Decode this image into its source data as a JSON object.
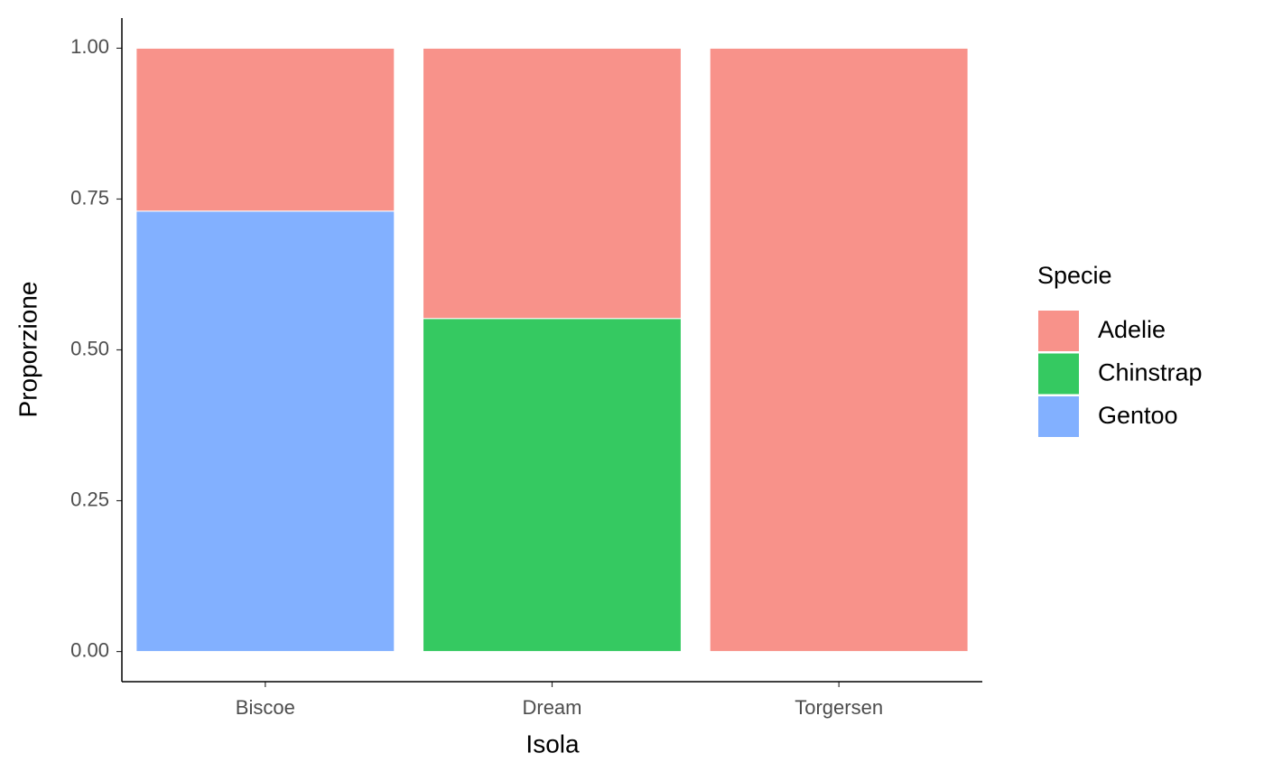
{
  "chart_data": {
    "type": "stacked_bar",
    "x_label": "Isola",
    "y_label": "Proporzione",
    "legend_title": "Specie",
    "categories": [
      "Biscoe",
      "Dream",
      "Torgersen"
    ],
    "series": [
      {
        "name": "Adelie",
        "color": "#f8928a",
        "values": [
          0.27,
          0.448,
          1.0
        ]
      },
      {
        "name": "Chinstrap",
        "color": "#35c961",
        "values": [
          0,
          0.552,
          0
        ]
      },
      {
        "name": "Gentoo",
        "color": "#82b0ff",
        "values": [
          0.73,
          0,
          0
        ]
      }
    ],
    "ylim": [
      -0.05,
      1.05
    ],
    "yticks": [
      {
        "value": 0,
        "label": "0.00"
      },
      {
        "value": 0.25,
        "label": "0.25"
      },
      {
        "value": 0.5,
        "label": "0.50"
      },
      {
        "value": 0.75,
        "label": "0.75"
      },
      {
        "value": 1,
        "label": "1.00"
      }
    ],
    "legend_position": "right"
  }
}
